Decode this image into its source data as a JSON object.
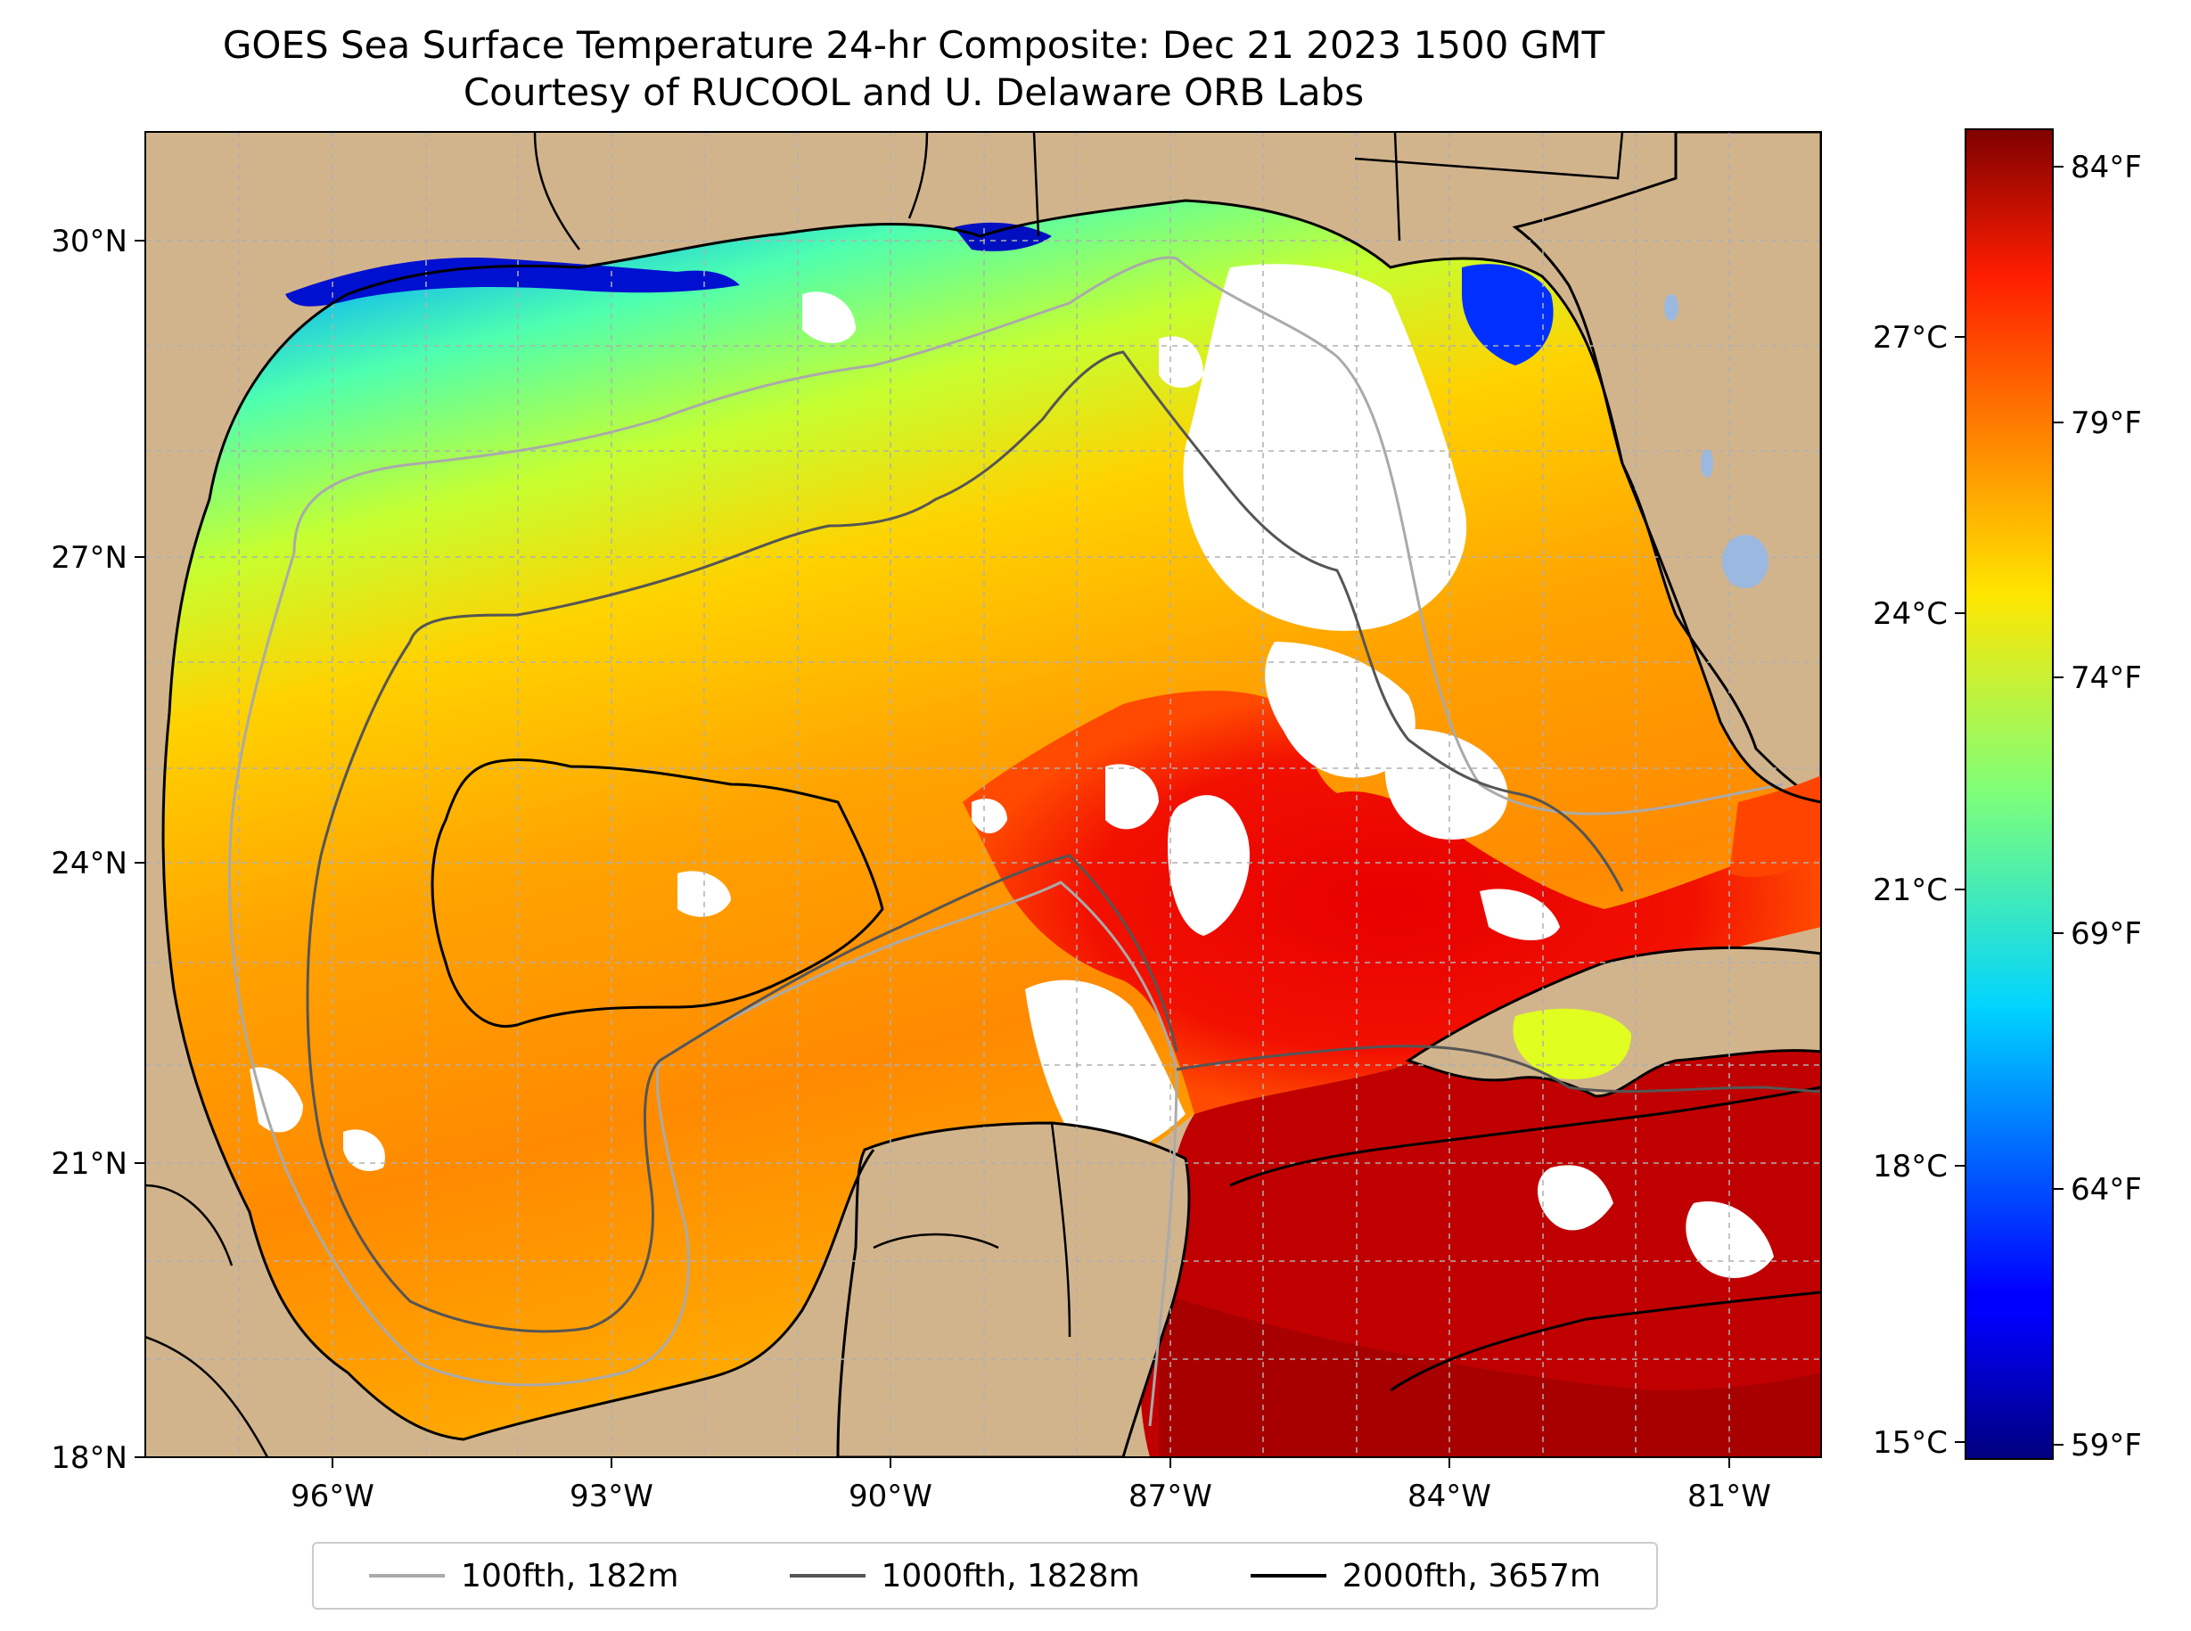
{
  "title": {
    "line1": "GOES Sea Surface Temperature 24-hr Composite: Dec 21 2023 1500 GMT",
    "line2": "Courtesy of RUCOOL and U. Delaware ORB Labs"
  },
  "map": {
    "extent": {
      "lon_min": -98,
      "lon_max": -80,
      "lat_min": 18,
      "lat_max": 31
    },
    "colors": {
      "land": "#d2b48c",
      "no_data": "#ffffff",
      "lake": "#9bb8e0",
      "gridline": "#b0b0b0"
    },
    "lat_ticks": [
      {
        "value": 30,
        "label": "30°N"
      },
      {
        "value": 27,
        "label": "27°N"
      },
      {
        "value": 24,
        "label": "24°N"
      },
      {
        "value": 21,
        "label": "21°N"
      },
      {
        "value": 18,
        "label": "18°N"
      }
    ],
    "lon_ticks": [
      {
        "value": -96,
        "label": "96°W"
      },
      {
        "value": -93,
        "label": "93°W"
      },
      {
        "value": -90,
        "label": "90°W"
      },
      {
        "value": -87,
        "label": "87°W"
      },
      {
        "value": -84,
        "label": "84°W"
      },
      {
        "value": -81,
        "label": "81°W"
      }
    ]
  },
  "colorbar": {
    "colormap": "jet",
    "range_c": [
      15,
      29
    ],
    "celsius_ticks": [
      {
        "value": 27,
        "label": "27°C"
      },
      {
        "value": 24,
        "label": "24°C"
      },
      {
        "value": 21,
        "label": "21°C"
      },
      {
        "value": 18,
        "label": "18°C"
      },
      {
        "value": 15,
        "label": "15°C"
      }
    ],
    "fahrenheit_ticks": [
      {
        "value": 84,
        "label": "84°F"
      },
      {
        "value": 79,
        "label": "79°F"
      },
      {
        "value": 74,
        "label": "74°F"
      },
      {
        "value": 69,
        "label": "69°F"
      },
      {
        "value": 64,
        "label": "64°F"
      },
      {
        "value": 59,
        "label": "59°F"
      }
    ]
  },
  "legend": {
    "items": [
      {
        "label": "100fth, 182m",
        "color": "#aaaaaa"
      },
      {
        "label": "1000fth, 1828m",
        "color": "#555555"
      },
      {
        "label": "2000fth, 3657m",
        "color": "#000000"
      }
    ]
  }
}
